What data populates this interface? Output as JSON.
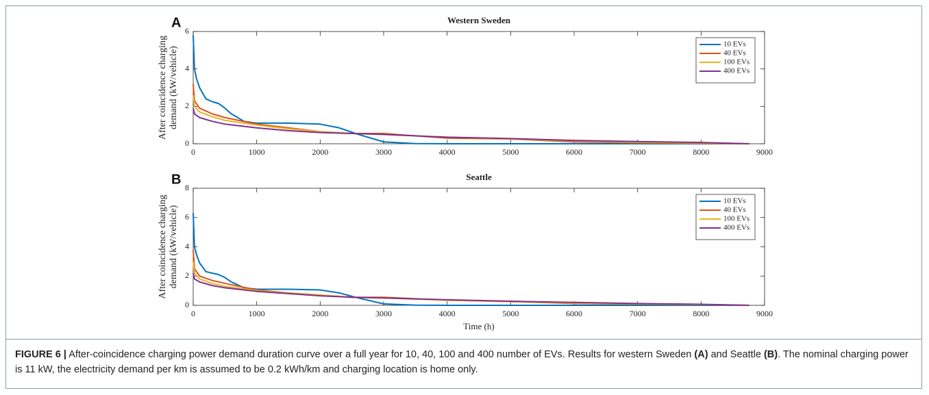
{
  "chart_data": [
    {
      "type": "line",
      "panel": "A",
      "title": "Western Sweden",
      "ylabel": [
        "After coincidence charging",
        "demand (kW/vehicle)"
      ],
      "xlim": [
        0,
        9000
      ],
      "xticks": [
        0,
        1000,
        2000,
        3000,
        4000,
        5000,
        6000,
        7000,
        8000,
        9000
      ],
      "ylim": [
        0,
        6
      ],
      "yticks": [
        0,
        2,
        4,
        6
      ],
      "legend": "northeast",
      "series": [
        {
          "name": "10 EVs",
          "color": "#0072bd",
          "x": [
            0,
            20,
            50,
            100,
            200,
            300,
            400,
            500,
            600,
            800,
            1000,
            1500,
            2000,
            2300,
            2600,
            3000,
            3500,
            4000,
            6000,
            8760
          ],
          "values": [
            5.8,
            4,
            3.5,
            3,
            2.4,
            2.25,
            2.15,
            1.9,
            1.6,
            1.2,
            1.1,
            1.1,
            1.05,
            0.85,
            0.5,
            0.1,
            0.01,
            0,
            0,
            0
          ]
        },
        {
          "name": "40 EVs",
          "color": "#d95319",
          "x": [
            0,
            20,
            100,
            300,
            500,
            1000,
            1500,
            2000,
            2500,
            3000,
            4000,
            5000,
            6000,
            7000,
            8000,
            8760
          ],
          "values": [
            3.2,
            2.3,
            1.9,
            1.6,
            1.4,
            1.05,
            0.85,
            0.65,
            0.55,
            0.55,
            0.3,
            0.25,
            0.1,
            0.05,
            0.02,
            0
          ]
        },
        {
          "name": "100 EVs",
          "color": "#edb120",
          "x": [
            0,
            20,
            100,
            300,
            500,
            1000,
            1500,
            2000,
            2500,
            3000,
            4000,
            5000,
            6000,
            7000,
            8000,
            8760
          ],
          "values": [
            2.6,
            2.0,
            1.7,
            1.45,
            1.25,
            1.0,
            0.8,
            0.65,
            0.55,
            0.5,
            0.35,
            0.25,
            0.15,
            0.08,
            0.04,
            0
          ]
        },
        {
          "name": "400 EVs",
          "color": "#7e2f8e",
          "x": [
            0,
            20,
            100,
            300,
            500,
            1000,
            1500,
            2000,
            2500,
            3000,
            4000,
            5000,
            6000,
            7000,
            8000,
            8760
          ],
          "values": [
            1.9,
            1.6,
            1.4,
            1.2,
            1.05,
            0.85,
            0.7,
            0.6,
            0.55,
            0.5,
            0.35,
            0.28,
            0.18,
            0.12,
            0.07,
            0
          ]
        }
      ]
    },
    {
      "type": "line",
      "panel": "B",
      "title": "Seattle",
      "ylabel": [
        "After coincidence charging",
        "demand (kW/vehicle)"
      ],
      "xlabel": "Time (h)",
      "xlim": [
        0,
        9000
      ],
      "xticks": [
        0,
        1000,
        2000,
        3000,
        4000,
        5000,
        6000,
        7000,
        8000,
        9000
      ],
      "ylim": [
        0,
        8
      ],
      "yticks": [
        0,
        2,
        4,
        6,
        8
      ],
      "legend": "northeast",
      "series": [
        {
          "name": "10 EVs",
          "color": "#0072bd",
          "x": [
            0,
            20,
            50,
            100,
            200,
            300,
            400,
            500,
            600,
            800,
            1000,
            1500,
            2000,
            2300,
            2600,
            3000,
            3500,
            4000,
            6000,
            8760
          ],
          "values": [
            6.3,
            4,
            3.5,
            2.9,
            2.3,
            2.2,
            2.1,
            1.9,
            1.6,
            1.2,
            1.1,
            1.1,
            1.05,
            0.85,
            0.5,
            0.1,
            0.01,
            0,
            0,
            0
          ]
        },
        {
          "name": "40 EVs",
          "color": "#d95319",
          "x": [
            0,
            20,
            100,
            300,
            500,
            1000,
            1500,
            2000,
            2500,
            3000,
            4000,
            5000,
            6000,
            7000,
            8000,
            8760
          ],
          "values": [
            3.8,
            2.5,
            2.0,
            1.7,
            1.5,
            1.05,
            0.85,
            0.7,
            0.55,
            0.55,
            0.35,
            0.25,
            0.12,
            0.08,
            0.05,
            0
          ]
        },
        {
          "name": "100 EVs",
          "color": "#edb120",
          "x": [
            0,
            20,
            100,
            300,
            500,
            1000,
            1500,
            2000,
            2500,
            3000,
            4000,
            5000,
            6000,
            7000,
            8000,
            8760
          ],
          "values": [
            3.0,
            2.2,
            1.8,
            1.5,
            1.3,
            1.0,
            0.85,
            0.7,
            0.55,
            0.5,
            0.35,
            0.25,
            0.15,
            0.1,
            0.05,
            0
          ]
        },
        {
          "name": "400 EVs",
          "color": "#7e2f8e",
          "x": [
            0,
            20,
            100,
            300,
            500,
            1000,
            1500,
            2000,
            2500,
            3000,
            4000,
            5000,
            6000,
            7000,
            8000,
            8760
          ],
          "values": [
            2.2,
            1.8,
            1.6,
            1.35,
            1.2,
            0.95,
            0.8,
            0.65,
            0.55,
            0.5,
            0.38,
            0.28,
            0.2,
            0.12,
            0.07,
            0
          ]
        }
      ]
    }
  ],
  "caption": [
    {
      "text": "FIGURE 6 |",
      "bold": true
    },
    {
      "text": " After-coincidence charging power demand duration curve over a full year for 10, 40, 100 and 400 number of EVs. Results for western Sweden ",
      "bold": false
    },
    {
      "text": "(A)",
      "bold": true
    },
    {
      "text": " and Seattle ",
      "bold": false
    },
    {
      "text": "(B)",
      "bold": true
    },
    {
      "text": ". The nominal charging power is 11 kW, the electricity demand per km is assumed to be 0.2 kWh/km and charging location is home only.",
      "bold": false
    }
  ]
}
